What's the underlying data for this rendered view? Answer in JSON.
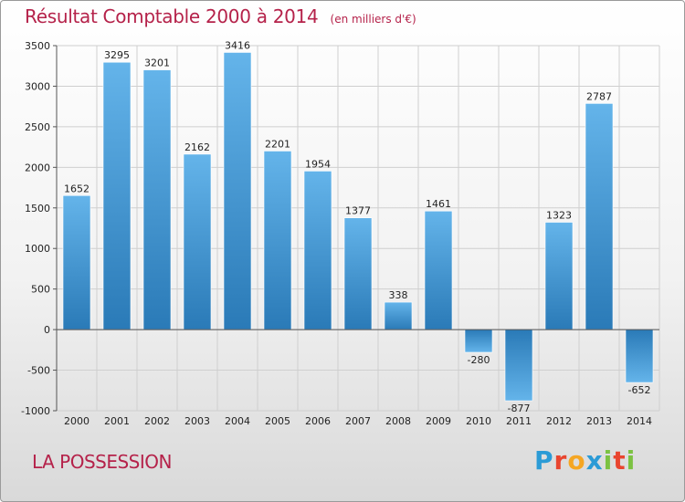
{
  "header": {
    "title": "Résultat Comptable 2000 à 2014",
    "subtitle": "(en milliers d'€)"
  },
  "footer": {
    "commune": "LA POSSESSION",
    "logo_text": "Proxiti",
    "logo_colors": [
      "#2b9bd6",
      "#e9452f",
      "#f5a623",
      "#2b9bd6",
      "#7cc242",
      "#e9452f",
      "#7cc242"
    ]
  },
  "colors": {
    "bar_light": "#64b4ea",
    "bar_dark": "#2a7ab7",
    "grid": "#cfcfcf",
    "axis": "#555555"
  },
  "chart_data": {
    "type": "bar",
    "title": "Résultat Comptable 2000 à 2014",
    "subtitle": "(en milliers d'€)",
    "xlabel": "",
    "ylabel": "",
    "categories": [
      "2000",
      "2001",
      "2002",
      "2003",
      "2004",
      "2005",
      "2006",
      "2007",
      "2008",
      "2009",
      "2010",
      "2011",
      "2012",
      "2013",
      "2014"
    ],
    "values": [
      1652,
      3295,
      3201,
      2162,
      3416,
      2201,
      1954,
      1377,
      338,
      1461,
      -280,
      -877,
      1323,
      2787,
      -652
    ],
    "ylim": [
      -1000,
      3500
    ],
    "yticks": [
      -1000,
      -500,
      0,
      500,
      1000,
      1500,
      2000,
      2500,
      3000,
      3500
    ],
    "grid": true,
    "legend": "none"
  }
}
